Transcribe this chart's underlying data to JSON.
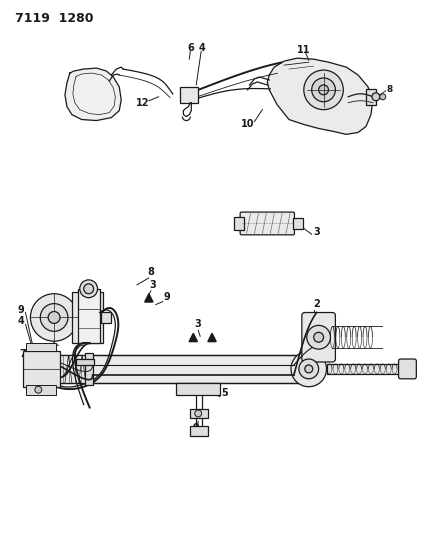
{
  "title": "7119  1280",
  "bg_color": "#ffffff",
  "lc": "#1a1a1a",
  "figsize": [
    4.28,
    5.33
  ],
  "dpi": 100
}
